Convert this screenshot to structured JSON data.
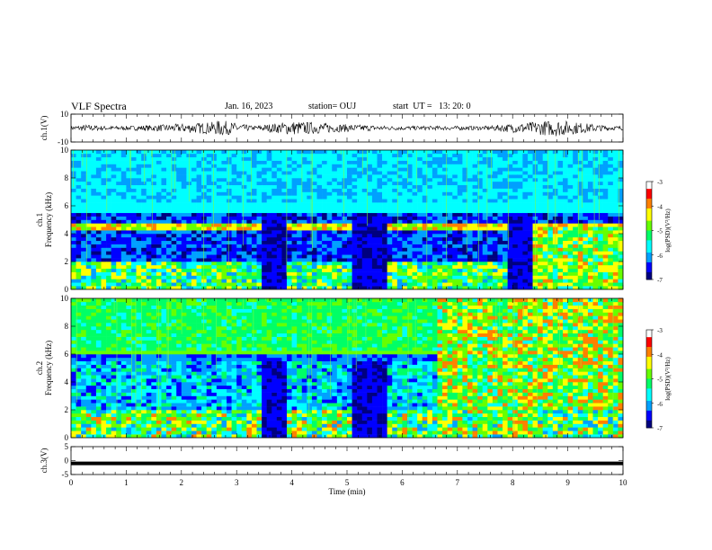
{
  "header": {
    "title": "VLF Spectra",
    "date": "Jan. 16, 2023",
    "station": "station= OUJ",
    "start": "start  UT =   13: 20: 0"
  },
  "colors": {
    "waveform": "#000000",
    "colormap": [
      "#00007f",
      "#0000ff",
      "#00a0ff",
      "#00ffff",
      "#00ff66",
      "#66ff00",
      "#ffff00",
      "#ff8000",
      "#ff0000",
      "#ffffff"
    ]
  },
  "chart_data": [
    {
      "type": "line",
      "panel": "waveform",
      "ylabel": "ch.1(V)",
      "ylim": [
        -10,
        10
      ],
      "yticks": [
        "10",
        "-10"
      ],
      "xlim": [
        0,
        10
      ],
      "x": [
        0,
        0.3,
        0.6,
        1.0,
        1.7,
        2.6,
        2.7,
        3.0,
        3.3,
        4.0,
        4.5,
        4.8,
        5.8,
        6.3,
        7.5,
        8.8,
        9.0,
        9.2,
        9.8
      ],
      "amplitude": [
        1.5,
        2.5,
        1.5,
        1.5,
        2.5,
        4.5,
        6,
        3.5,
        1.5,
        5,
        4,
        3,
        1.5,
        1.5,
        1.5,
        6,
        5,
        4,
        1.5
      ]
    },
    {
      "type": "heatmap",
      "panel": "ch1-spectrogram",
      "ylabel_top": "ch.1",
      "ylabel": "Frequency (kHz)",
      "ylim": [
        0,
        10
      ],
      "yticks": [
        "0",
        "2",
        "4",
        "6",
        "8",
        "10"
      ],
      "xlim": [
        0,
        10
      ],
      "colorbar": {
        "label": "log(PSD)(V²/Hz)",
        "range": [
          -7,
          -3
        ],
        "ticks": [
          "-3",
          "-4",
          "-5",
          "-6",
          "-7"
        ]
      }
    },
    {
      "type": "heatmap",
      "panel": "ch2-spectrogram",
      "ylabel_top": "ch.2",
      "ylabel": "Frequency (kHz)",
      "ylim": [
        0,
        10
      ],
      "yticks": [
        "0",
        "2",
        "4",
        "6",
        "8",
        "10"
      ],
      "xlim": [
        0,
        10
      ],
      "colorbar": {
        "label": "log(PSD)(V²/Hz)",
        "range": [
          -7,
          -3
        ],
        "ticks": [
          "-3",
          "-4",
          "-5",
          "-6",
          "-7"
        ]
      }
    },
    {
      "type": "line",
      "panel": "ch3",
      "ylabel": "ch.3(V)",
      "ylim": [
        -5,
        5
      ],
      "yticks": [
        "5",
        "0",
        "-5"
      ],
      "x": [
        0,
        10
      ],
      "y": [
        -1,
        -1
      ]
    }
  ],
  "xaxis": {
    "label": "Time (min)",
    "ticks": [
      "0",
      "1",
      "2",
      "3",
      "4",
      "5",
      "6",
      "7",
      "8",
      "9",
      "10"
    ]
  }
}
